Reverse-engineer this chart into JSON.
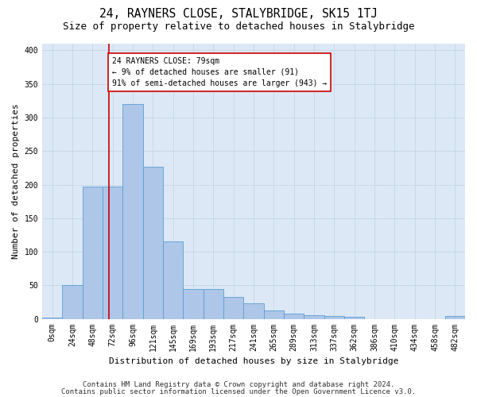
{
  "title": "24, RAYNERS CLOSE, STALYBRIDGE, SK15 1TJ",
  "subtitle": "Size of property relative to detached houses in Stalybridge",
  "xlabel": "Distribution of detached houses by size in Stalybridge",
  "ylabel": "Number of detached properties",
  "footer1": "Contains HM Land Registry data © Crown copyright and database right 2024.",
  "footer2": "Contains public sector information licensed under the Open Government Licence v3.0.",
  "bar_labels": [
    "0sqm",
    "24sqm",
    "48sqm",
    "72sqm",
    "96sqm",
    "121sqm",
    "145sqm",
    "169sqm",
    "193sqm",
    "217sqm",
    "241sqm",
    "265sqm",
    "289sqm",
    "313sqm",
    "337sqm",
    "362sqm",
    "386sqm",
    "410sqm",
    "434sqm",
    "458sqm",
    "482sqm"
  ],
  "bar_values": [
    2,
    50,
    197,
    197,
    320,
    227,
    115,
    45,
    45,
    33,
    23,
    13,
    8,
    5,
    4,
    3,
    0,
    0,
    0,
    0,
    4
  ],
  "bar_color": "#aec6e8",
  "bar_edge_color": "#5a9fd4",
  "grid_color": "#c8d8e8",
  "background_color": "#dce8f5",
  "annotation_text": "24 RAYNERS CLOSE: 79sqm\n← 9% of detached houses are smaller (91)\n91% of semi-detached houses are larger (943) →",
  "annotation_box_color": "#ffffff",
  "annotation_box_edge": "#cc0000",
  "ylim": [
    0,
    410
  ],
  "yticks": [
    0,
    50,
    100,
    150,
    200,
    250,
    300,
    350,
    400
  ],
  "red_line_color": "#cc0000",
  "red_line_x": 2.83,
  "title_fontsize": 10.5,
  "subtitle_fontsize": 9,
  "label_fontsize": 8,
  "tick_fontsize": 7,
  "annotation_fontsize": 7,
  "footer_fontsize": 6.5
}
